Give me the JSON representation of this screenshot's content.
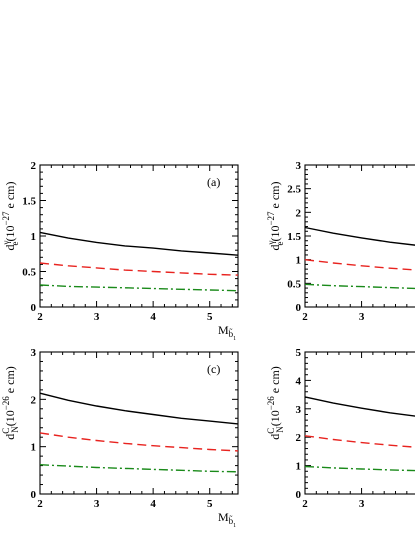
{
  "chart_data": [
    {
      "type": "line",
      "panel_label": "(a)",
      "ylabel": {
        "main": "d",
        "sup": "γ",
        "sub": "e",
        "rest": "(10",
        "exp": "−27",
        "unit": " e cm)"
      },
      "xlabel": {
        "main": "M",
        "sub": "b̃",
        "subsub": "1"
      },
      "xlim": [
        2,
        5.5
      ],
      "ylim": [
        0,
        2
      ],
      "xticks": [
        2,
        3,
        4,
        5
      ],
      "yticks": [
        0,
        0.5,
        1,
        1.5,
        2
      ],
      "ytick_labels": [
        "0",
        "0.5",
        "1",
        "1.5",
        "2"
      ],
      "x": [
        2,
        2.5,
        3,
        3.5,
        4,
        4.5,
        5,
        5.5
      ],
      "series": [
        {
          "color": "#000000",
          "dash": "solid",
          "values": [
            1.05,
            0.97,
            0.91,
            0.86,
            0.83,
            0.79,
            0.76,
            0.73
          ]
        },
        {
          "color": "#e8231f",
          "dash": "dashed",
          "values": [
            0.62,
            0.58,
            0.55,
            0.52,
            0.5,
            0.48,
            0.46,
            0.45
          ]
        },
        {
          "color": "#1a8a1a",
          "dash": "dashdot",
          "values": [
            0.31,
            0.29,
            0.28,
            0.27,
            0.26,
            0.25,
            0.24,
            0.23
          ]
        }
      ]
    },
    {
      "type": "line",
      "panel_label": "",
      "ylabel": {
        "main": "d",
        "sup": "γ",
        "sub": "e",
        "rest": "(10",
        "exp": "−27",
        "unit": " e cm)"
      },
      "xlabel": null,
      "xlim": [
        2,
        5.5
      ],
      "ylim": [
        0,
        3
      ],
      "xticks": [
        2,
        3,
        4,
        5
      ],
      "yticks": [
        0,
        0.5,
        1,
        1.5,
        2,
        2.5,
        3
      ],
      "ytick_labels": [
        "0",
        "0.5",
        "1",
        "1.5",
        "2",
        "2.5",
        "3"
      ],
      "x": [
        2,
        2.5,
        3,
        3.5,
        4,
        4.5,
        5,
        5.5
      ],
      "series": [
        {
          "color": "#000000",
          "dash": "solid",
          "values": [
            1.68,
            1.56,
            1.46,
            1.37,
            1.3,
            1.24,
            1.19,
            1.14
          ]
        },
        {
          "color": "#e8231f",
          "dash": "dashed",
          "values": [
            1.0,
            0.93,
            0.87,
            0.82,
            0.78,
            0.74,
            0.71,
            0.68
          ]
        },
        {
          "color": "#1a8a1a",
          "dash": "dashdot",
          "values": [
            0.48,
            0.45,
            0.43,
            0.41,
            0.39,
            0.37,
            0.36,
            0.35
          ]
        }
      ]
    },
    {
      "type": "line",
      "panel_label": "(c)",
      "ylabel": {
        "main": "d",
        "sup": "C",
        "sub": "N",
        "rest": "(10",
        "exp": "−26",
        "unit": " e cm)"
      },
      "xlabel": {
        "main": "M",
        "sub": "b̃",
        "subsub": "1"
      },
      "xlim": [
        2,
        5.5
      ],
      "ylim": [
        0,
        3
      ],
      "xticks": [
        2,
        3,
        4,
        5
      ],
      "yticks": [
        0,
        1,
        2,
        3
      ],
      "ytick_labels": [
        "0",
        "1",
        "2",
        "3"
      ],
      "x": [
        2,
        2.5,
        3,
        3.5,
        4,
        4.5,
        5,
        5.5
      ],
      "series": [
        {
          "color": "#000000",
          "dash": "solid",
          "values": [
            2.13,
            1.98,
            1.86,
            1.76,
            1.68,
            1.6,
            1.54,
            1.48
          ]
        },
        {
          "color": "#e8231f",
          "dash": "dashed",
          "values": [
            1.29,
            1.2,
            1.13,
            1.07,
            1.02,
            0.98,
            0.94,
            0.91
          ]
        },
        {
          "color": "#1a8a1a",
          "dash": "dashdot",
          "values": [
            0.62,
            0.59,
            0.56,
            0.54,
            0.52,
            0.5,
            0.48,
            0.47
          ]
        }
      ]
    },
    {
      "type": "line",
      "panel_label": "",
      "ylabel": {
        "main": "d",
        "sup": "C",
        "sub": "N",
        "rest": "(10",
        "exp": "−26",
        "unit": " e cm)"
      },
      "xlabel": null,
      "xlim": [
        2,
        5.5
      ],
      "ylim": [
        0,
        5
      ],
      "xticks": [
        2,
        3,
        4,
        5
      ],
      "yticks": [
        0,
        1,
        2,
        3,
        4,
        5
      ],
      "ytick_labels": [
        "0",
        "1",
        "2",
        "3",
        "4",
        "5"
      ],
      "x": [
        2,
        2.5,
        3,
        3.5,
        4,
        4.5,
        5,
        5.5
      ],
      "series": [
        {
          "color": "#000000",
          "dash": "solid",
          "values": [
            3.42,
            3.2,
            3.02,
            2.86,
            2.73,
            2.62,
            2.52,
            2.43
          ]
        },
        {
          "color": "#e8231f",
          "dash": "dashed",
          "values": [
            2.05,
            1.92,
            1.81,
            1.72,
            1.64,
            1.57,
            1.51,
            1.45
          ]
        },
        {
          "color": "#1a8a1a",
          "dash": "dashdot",
          "values": [
            0.97,
            0.92,
            0.88,
            0.85,
            0.82,
            0.79,
            0.77,
            0.75
          ]
        }
      ]
    }
  ]
}
